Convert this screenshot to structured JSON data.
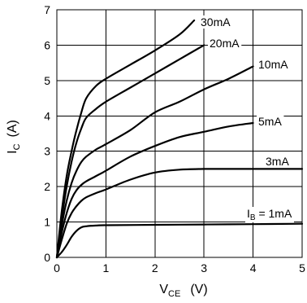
{
  "chart_data": {
    "type": "line",
    "xlabel": {
      "main": "V",
      "sub": "CE",
      "unit": "(V)"
    },
    "ylabel": {
      "main": "I",
      "sub": "C",
      "unit": "(A)"
    },
    "xlim": [
      0,
      5
    ],
    "ylim": [
      0,
      7
    ],
    "xticks": [
      "0",
      "1",
      "2",
      "3",
      "4",
      "5"
    ],
    "yticks": [
      "0",
      "1",
      "2",
      "3",
      "4",
      "5",
      "6",
      "7"
    ],
    "grid": true,
    "series": [
      {
        "name": "30mA",
        "x": [
          0,
          0.1,
          0.2,
          0.3,
          0.4,
          0.5,
          0.6,
          0.8,
          1.0,
          1.5,
          2.0,
          2.5,
          2.8
        ],
        "y": [
          0,
          1.3,
          2.3,
          3.0,
          3.6,
          4.1,
          4.5,
          4.85,
          5.05,
          5.45,
          5.85,
          6.3,
          6.7
        ]
      },
      {
        "name": "20mA",
        "x": [
          0,
          0.1,
          0.2,
          0.3,
          0.4,
          0.5,
          0.6,
          0.8,
          1.0,
          1.5,
          2.0,
          2.5,
          3.0
        ],
        "y": [
          0,
          1.1,
          2.0,
          2.7,
          3.25,
          3.65,
          3.95,
          4.2,
          4.4,
          4.8,
          5.2,
          5.6,
          6.0
        ]
      },
      {
        "name": "10mA",
        "x": [
          0,
          0.1,
          0.2,
          0.3,
          0.4,
          0.5,
          0.6,
          0.8,
          1.0,
          1.5,
          2.0,
          2.5,
          3.0,
          3.5,
          4.0
        ],
        "y": [
          0,
          0.9,
          1.6,
          2.1,
          2.45,
          2.7,
          2.85,
          3.05,
          3.2,
          3.6,
          4.1,
          4.4,
          4.75,
          5.05,
          5.4
        ]
      },
      {
        "name": "5mA",
        "x": [
          0,
          0.1,
          0.2,
          0.3,
          0.4,
          0.5,
          0.6,
          0.8,
          1.0,
          1.5,
          2.0,
          2.5,
          3.0,
          3.5,
          4.0
        ],
        "y": [
          0,
          0.7,
          1.25,
          1.65,
          1.9,
          2.05,
          2.15,
          2.3,
          2.45,
          2.85,
          3.15,
          3.4,
          3.55,
          3.7,
          3.8
        ]
      },
      {
        "name": "3mA",
        "x": [
          0,
          0.1,
          0.2,
          0.3,
          0.4,
          0.5,
          0.6,
          0.8,
          1.0,
          1.5,
          2.0,
          2.5,
          3.0,
          3.5,
          4.0,
          5.0
        ],
        "y": [
          0,
          0.5,
          0.95,
          1.25,
          1.45,
          1.6,
          1.7,
          1.82,
          1.92,
          2.2,
          2.4,
          2.48,
          2.5,
          2.5,
          2.5,
          2.5
        ]
      },
      {
        "name": "I_B = 1mA",
        "x": [
          0,
          0.1,
          0.2,
          0.3,
          0.4,
          0.5,
          0.6,
          0.8,
          1.0,
          2.0,
          3.0,
          4.0,
          5.0
        ],
        "y": [
          0,
          0.15,
          0.35,
          0.58,
          0.75,
          0.85,
          0.88,
          0.9,
          0.91,
          0.92,
          0.93,
          0.94,
          0.95
        ]
      }
    ],
    "series_labels": [
      {
        "text": "30mA"
      },
      {
        "text": "20mA"
      },
      {
        "text": "10mA"
      },
      {
        "text": "5mA"
      },
      {
        "text": "3mA"
      },
      {
        "main": "I",
        "sub": "B",
        "rest": " = 1mA"
      }
    ]
  }
}
